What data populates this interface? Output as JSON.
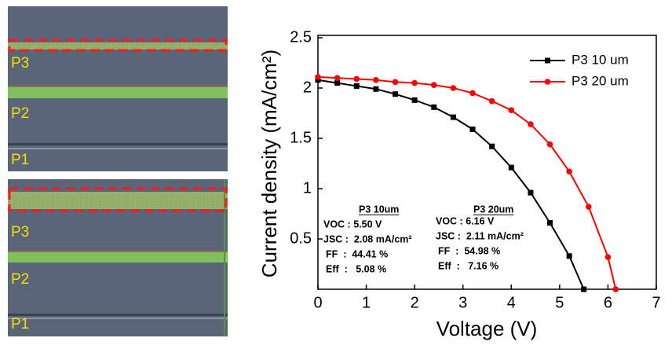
{
  "chart_data": {
    "type": "line",
    "xlabel": "Voltage (V)",
    "ylabel": "Current density (mA/cm²)",
    "xlim": [
      0,
      7
    ],
    "xticks": [
      0,
      1,
      2,
      3,
      4,
      5,
      6,
      7
    ],
    "ylim": [
      0,
      2.5
    ],
    "yticks": [
      0.5,
      1.0,
      1.5,
      2.0,
      2.5
    ],
    "legend": "upper right",
    "series": [
      {
        "name": "P3 10 um",
        "color": "#000000",
        "marker": "square",
        "x": [
          0,
          0.4,
          0.8,
          1.2,
          1.6,
          2.0,
          2.4,
          2.8,
          3.2,
          3.6,
          4.0,
          4.4,
          4.8,
          5.2,
          5.5
        ],
        "values": [
          2.08,
          2.05,
          2.02,
          1.99,
          1.94,
          1.88,
          1.81,
          1.71,
          1.59,
          1.42,
          1.21,
          0.96,
          0.66,
          0.33,
          0
        ]
      },
      {
        "name": "P3 20 um",
        "color": "#ff0000",
        "marker": "circle",
        "x": [
          0,
          0.4,
          0.8,
          1.2,
          1.6,
          2.0,
          2.4,
          2.8,
          3.2,
          3.6,
          4.0,
          4.4,
          4.8,
          5.2,
          5.6,
          6.0,
          6.16
        ],
        "values": [
          2.11,
          2.1,
          2.09,
          2.08,
          2.06,
          2.05,
          2.03,
          2.0,
          1.95,
          1.87,
          1.78,
          1.64,
          1.44,
          1.17,
          0.82,
          0.32,
          0
        ]
      }
    ],
    "annotations": [
      {
        "title": "P3 10um",
        "lines": [
          "VOC : 5.50 V",
          "JSC :  2.08 mA/cm²",
          "FF  :  44.41 %",
          "Eff  :   5.08 %"
        ]
      },
      {
        "title": "P3 20um",
        "lines": [
          "VOC : 6.16 V",
          "JSC :  2.11 mA/cm²",
          "FF  :  54.98 %",
          "Eff  :   7.16 %"
        ]
      }
    ]
  },
  "micrographs": [
    {
      "labels": [
        "P3",
        "P2",
        "P1"
      ]
    },
    {
      "labels": [
        "P3",
        "P2",
        "P1"
      ]
    }
  ]
}
